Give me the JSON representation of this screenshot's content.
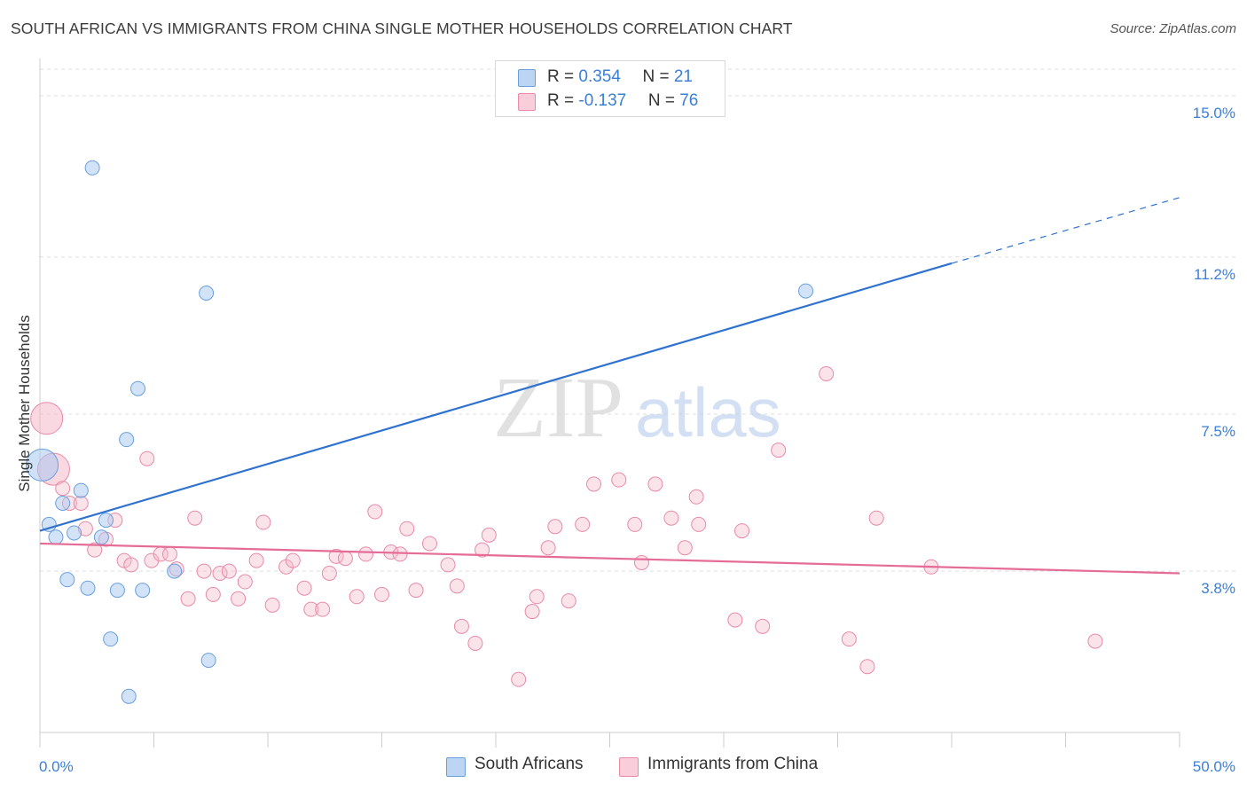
{
  "title": "SOUTH AFRICAN VS IMMIGRANTS FROM CHINA SINGLE MOTHER HOUSEHOLDS CORRELATION CHART",
  "source": "Source: ZipAtlas.com",
  "watermark": {
    "zip": "ZIP",
    "atlas": "atlas"
  },
  "stats": [
    {
      "r_label": "R = ",
      "r_value": "0.354",
      "n_label": "N = ",
      "n_value": "21",
      "color": "#a8c8f0"
    },
    {
      "r_label": "R = ",
      "r_value": "-0.137",
      "n_label": "N = ",
      "n_value": "76",
      "color": "#f5b8cb"
    }
  ],
  "colors": {
    "blue_fill": "#a8c8f0",
    "blue_stroke": "#6a9fdc",
    "blue_line": "#2f72d0",
    "pink_fill": "#f5b8cb",
    "pink_stroke": "#e88aa8",
    "pink_line": "#e46c96",
    "axis_label": "#3a7fd5",
    "grid": "#dddddd"
  },
  "chart_data": {
    "type": "scatter",
    "title": "SOUTH AFRICAN VS IMMIGRANTS FROM CHINA SINGLE MOTHER HOUSEHOLDS CORRELATION CHART",
    "xlabel": "",
    "ylabel": "Single Mother Households",
    "xlim": [
      0,
      50
    ],
    "ylim": [
      0,
      16
    ],
    "x_tick_labels": {
      "0": "0.0%",
      "50": "50.0%"
    },
    "y_ticks": [
      3.8,
      7.5,
      11.2,
      15.0
    ],
    "y_tick_labels": [
      "3.8%",
      "7.5%",
      "11.2%",
      "15.0%"
    ],
    "grid": true,
    "legend": "bottom-center",
    "series": [
      {
        "name": "South Africans",
        "color": "#a8c8f0",
        "trend": {
          "x": [
            0,
            40
          ],
          "y": [
            4.75,
            11.05
          ],
          "dashed_to": [
            50,
            12.6
          ]
        },
        "points": [
          {
            "x": 0.1,
            "y": 6.3,
            "big": true
          },
          {
            "x": 0.4,
            "y": 4.9
          },
          {
            "x": 0.7,
            "y": 4.6
          },
          {
            "x": 1.0,
            "y": 5.4
          },
          {
            "x": 1.2,
            "y": 3.6
          },
          {
            "x": 1.5,
            "y": 4.7
          },
          {
            "x": 1.8,
            "y": 5.7
          },
          {
            "x": 2.1,
            "y": 3.4
          },
          {
            "x": 2.3,
            "y": 13.3
          },
          {
            "x": 2.7,
            "y": 4.6
          },
          {
            "x": 2.9,
            "y": 5.0
          },
          {
            "x": 3.1,
            "y": 2.2
          },
          {
            "x": 3.4,
            "y": 3.35
          },
          {
            "x": 3.8,
            "y": 6.9
          },
          {
            "x": 3.9,
            "y": 0.85
          },
          {
            "x": 4.3,
            "y": 8.1
          },
          {
            "x": 4.5,
            "y": 3.35
          },
          {
            "x": 5.9,
            "y": 3.8
          },
          {
            "x": 7.3,
            "y": 10.35
          },
          {
            "x": 7.4,
            "y": 1.7
          },
          {
            "x": 33.6,
            "y": 10.4
          }
        ]
      },
      {
        "name": "Immigrants from China",
        "color": "#f5b8cb",
        "trend": {
          "x": [
            0,
            50
          ],
          "y": [
            4.45,
            3.75
          ]
        },
        "points": [
          {
            "x": 0.3,
            "y": 7.4,
            "big": true
          },
          {
            "x": 0.6,
            "y": 6.2,
            "big": true
          },
          {
            "x": 1.0,
            "y": 5.75
          },
          {
            "x": 1.3,
            "y": 5.4
          },
          {
            "x": 1.8,
            "y": 5.4
          },
          {
            "x": 2.0,
            "y": 4.8
          },
          {
            "x": 2.4,
            "y": 4.3
          },
          {
            "x": 2.9,
            "y": 4.55
          },
          {
            "x": 3.3,
            "y": 5.0
          },
          {
            "x": 3.7,
            "y": 4.05
          },
          {
            "x": 4.0,
            "y": 3.95
          },
          {
            "x": 4.7,
            "y": 6.45
          },
          {
            "x": 4.9,
            "y": 4.05
          },
          {
            "x": 5.3,
            "y": 4.2
          },
          {
            "x": 5.7,
            "y": 4.2
          },
          {
            "x": 6.0,
            "y": 3.85
          },
          {
            "x": 6.5,
            "y": 3.15
          },
          {
            "x": 6.8,
            "y": 5.05
          },
          {
            "x": 7.2,
            "y": 3.8
          },
          {
            "x": 7.6,
            "y": 3.25
          },
          {
            "x": 7.9,
            "y": 3.75
          },
          {
            "x": 8.3,
            "y": 3.8
          },
          {
            "x": 8.7,
            "y": 3.15
          },
          {
            "x": 9.0,
            "y": 3.55
          },
          {
            "x": 9.5,
            "y": 4.05
          },
          {
            "x": 9.8,
            "y": 4.95
          },
          {
            "x": 10.2,
            "y": 3.0
          },
          {
            "x": 10.8,
            "y": 3.9
          },
          {
            "x": 11.1,
            "y": 4.05
          },
          {
            "x": 11.6,
            "y": 3.4
          },
          {
            "x": 11.9,
            "y": 2.9
          },
          {
            "x": 12.4,
            "y": 2.9
          },
          {
            "x": 12.7,
            "y": 3.75
          },
          {
            "x": 13.0,
            "y": 4.15
          },
          {
            "x": 13.4,
            "y": 4.1
          },
          {
            "x": 13.9,
            "y": 3.2
          },
          {
            "x": 14.3,
            "y": 4.2
          },
          {
            "x": 14.7,
            "y": 5.2
          },
          {
            "x": 15.0,
            "y": 3.25
          },
          {
            "x": 15.4,
            "y": 4.25
          },
          {
            "x": 15.8,
            "y": 4.2
          },
          {
            "x": 16.1,
            "y": 4.8
          },
          {
            "x": 16.5,
            "y": 3.35
          },
          {
            "x": 17.1,
            "y": 4.45
          },
          {
            "x": 17.9,
            "y": 3.95
          },
          {
            "x": 18.3,
            "y": 3.45
          },
          {
            "x": 18.5,
            "y": 2.5
          },
          {
            "x": 19.1,
            "y": 2.1
          },
          {
            "x": 19.4,
            "y": 4.3
          },
          {
            "x": 19.7,
            "y": 4.65
          },
          {
            "x": 21.0,
            "y": 1.25
          },
          {
            "x": 21.6,
            "y": 2.85
          },
          {
            "x": 21.8,
            "y": 3.2
          },
          {
            "x": 22.3,
            "y": 4.35
          },
          {
            "x": 22.6,
            "y": 4.85
          },
          {
            "x": 23.2,
            "y": 3.1
          },
          {
            "x": 23.8,
            "y": 4.9
          },
          {
            "x": 24.3,
            "y": 5.85
          },
          {
            "x": 25.4,
            "y": 5.95
          },
          {
            "x": 26.1,
            "y": 4.9
          },
          {
            "x": 26.4,
            "y": 4.0
          },
          {
            "x": 27.0,
            "y": 5.85
          },
          {
            "x": 27.7,
            "y": 5.05
          },
          {
            "x": 28.3,
            "y": 4.35
          },
          {
            "x": 28.8,
            "y": 5.55
          },
          {
            "x": 28.9,
            "y": 4.9
          },
          {
            "x": 30.5,
            "y": 2.65
          },
          {
            "x": 30.8,
            "y": 4.75
          },
          {
            "x": 31.7,
            "y": 2.5
          },
          {
            "x": 32.4,
            "y": 6.65
          },
          {
            "x": 34.5,
            "y": 8.45
          },
          {
            "x": 35.5,
            "y": 2.2
          },
          {
            "x": 36.3,
            "y": 1.55
          },
          {
            "x": 36.7,
            "y": 5.05
          },
          {
            "x": 39.1,
            "y": 3.9
          },
          {
            "x": 46.3,
            "y": 2.15
          }
        ]
      }
    ]
  }
}
